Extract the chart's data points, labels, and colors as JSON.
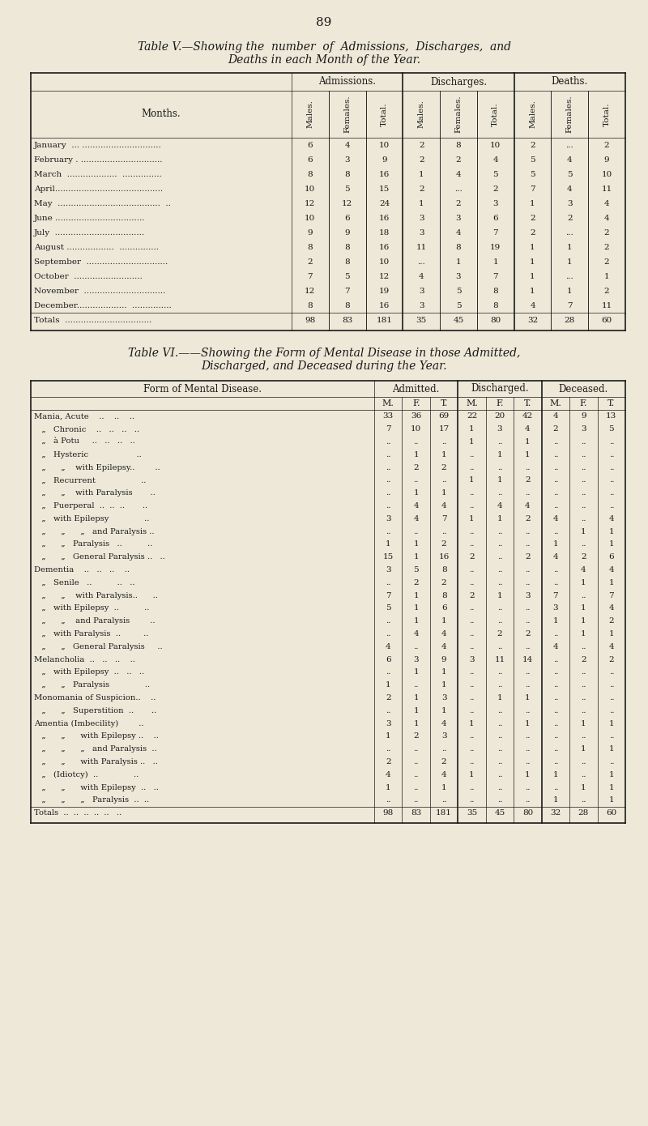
{
  "bg_color": "#ede8d8",
  "text_color": "#1a1a1a",
  "page_number": "89",
  "table5": {
    "title_line1": "Table V.—Showing the  number  of  Admissions,  Discharges,  and",
    "title_line2": "Deaths in each Month of the Year.",
    "col_groups": [
      "Admissions.",
      "Discharges.",
      "Deaths."
    ],
    "sub_cols": [
      "Males.",
      "Females.",
      "Total."
    ],
    "row_header": "Months.",
    "rows": [
      [
        "January  ... ..............................",
        "6",
        "4",
        "10",
        "2",
        "8",
        "10",
        "2",
        "...",
        "2"
      ],
      [
        "February . ...............................",
        "6",
        "3",
        "9",
        "2",
        "2",
        "4",
        "5",
        "4",
        "9"
      ],
      [
        "March  ...................  ...............",
        "8",
        "8",
        "16",
        "1",
        "4",
        "5",
        "5",
        "5",
        "10"
      ],
      [
        "April.........................................",
        "10",
        "5",
        "15",
        "2",
        "...",
        "2",
        "7",
        "4",
        "11"
      ],
      [
        "May  .......................................  ..",
        "12",
        "12",
        "24",
        "1",
        "2",
        "3",
        "1",
        "3",
        "4"
      ],
      [
        "June ..................................",
        "10",
        "6",
        "16",
        "3",
        "3",
        "6",
        "2",
        "2",
        "4"
      ],
      [
        "July  ..................................",
        "9",
        "9",
        "18",
        "3",
        "4",
        "7",
        "2",
        "...",
        "2"
      ],
      [
        "August ..................  ...............",
        "8",
        "8",
        "16",
        "11",
        "8",
        "19",
        "1",
        "1",
        "2"
      ],
      [
        "September  ...............................",
        "2",
        "8",
        "10",
        "...",
        "1",
        "1",
        "1",
        "1",
        "2"
      ],
      [
        "October  ..........................",
        "7",
        "5",
        "12",
        "4",
        "3",
        "7",
        "1",
        "...",
        "1"
      ],
      [
        "November  ...............................",
        "12",
        "7",
        "19",
        "3",
        "5",
        "8",
        "1",
        "1",
        "2"
      ],
      [
        "December...................  ...............",
        "8",
        "8",
        "16",
        "3",
        "5",
        "8",
        "4",
        "7",
        "11"
      ],
      [
        "Totals  .................................",
        "98",
        "83",
        "181",
        "35",
        "45",
        "80",
        "32",
        "28",
        "60"
      ]
    ]
  },
  "table6": {
    "title_line1": "Table VI.——Showing the Form of Mental Disease in those Admitted,",
    "title_line2": "Discharged, and Deceased during the Year.",
    "col_groups": [
      "Admitted.",
      "Discharged.",
      "Deceased."
    ],
    "sub_cols": [
      "M.",
      "F.",
      "T."
    ],
    "row_header": "Form of Mental Disease.",
    "rows": [
      [
        "Mania, Acute    ..    ..    ..",
        "33",
        "36",
        "69",
        "22",
        "20",
        "42",
        "4",
        "9",
        "13"
      ],
      [
        "   „   Chronic    ..   ..   ..   ..",
        "7",
        "10",
        "17",
        "1",
        "3",
        "4",
        "2",
        "3",
        "5"
      ],
      [
        "   „   à Potu     ..   ..   ..   ..",
        "..",
        "..",
        "..",
        "1",
        "..",
        "1",
        "..",
        "..",
        ".."
      ],
      [
        "   „   Hysteric                   ..",
        "..",
        "1",
        "1",
        "..",
        "1",
        "1",
        "..",
        "..",
        ".."
      ],
      [
        "   „      „    with Epilepsy..        ..",
        "..",
        "2",
        "2",
        "..",
        "..",
        "..",
        "..",
        "..",
        ".."
      ],
      [
        "   „   Recurrent                  ..",
        "..",
        "..",
        "..",
        "1",
        "1",
        "2",
        "..",
        "..",
        ".."
      ],
      [
        "   „      „    with Paralysis       ..",
        "..",
        "1",
        "1",
        "..",
        "..",
        "..",
        "..",
        "..",
        ".."
      ],
      [
        "   „   Puerperal  ..  ..  ..       ..",
        "..",
        "4",
        "4",
        "..",
        "4",
        "4",
        "..",
        "..",
        ".."
      ],
      [
        "   „   with Epilepsy              ..",
        "3",
        "4",
        "7",
        "1",
        "1",
        "2",
        "4",
        "..",
        "4"
      ],
      [
        "   „      „      „   and Paralysis ..",
        "..",
        "..",
        "..",
        "..",
        "..",
        "..",
        "..",
        "1",
        "1"
      ],
      [
        "   „      „   Paralysis   ..          ..",
        "1",
        "1",
        "2",
        "..",
        "..",
        "..",
        "1",
        "..",
        "1"
      ],
      [
        "   „      „   General Paralysis ..   ..",
        "15",
        "1",
        "16",
        "2",
        "..",
        "2",
        "4",
        "2",
        "6"
      ],
      [
        "Dementia    ..   ..   ..    ..",
        "3",
        "5",
        "8",
        "..",
        "..",
        "..",
        "..",
        "4",
        "4"
      ],
      [
        "   „   Senile   ..          ..   ..",
        "..",
        "2",
        "2",
        "..",
        "..",
        "..",
        "..",
        "1",
        "1"
      ],
      [
        "   „      „    with Paralysis..      ..",
        "7",
        "1",
        "8",
        "2",
        "1",
        "3",
        "7",
        "..",
        "7"
      ],
      [
        "   „   with Epilepsy  ..          ..",
        "5",
        "1",
        "6",
        "..",
        "..",
        "..",
        "3",
        "1",
        "4"
      ],
      [
        "   „      „    and Paralysis        ..",
        "..",
        "1",
        "1",
        "..",
        "..",
        "..",
        "1",
        "1",
        "2"
      ],
      [
        "   „   with Paralysis  ..         ..",
        "..",
        "4",
        "4",
        "..",
        "2",
        "2",
        "..",
        "1",
        "1"
      ],
      [
        "   „      „   General Paralysis     ..",
        "4",
        "..",
        "4",
        "..",
        "..",
        "..",
        "4",
        "..",
        "4"
      ],
      [
        "Melancholia  ..   ..   ..    ..",
        "6",
        "3",
        "9",
        "3",
        "11",
        "14",
        "..",
        "2",
        "2"
      ],
      [
        "   „   with Epilepsy  ..   ..   ..",
        "..",
        "1",
        "1",
        "..",
        "..",
        "..",
        "..",
        "..",
        ".."
      ],
      [
        "   „      „   Paralysis              ..",
        "1",
        "..",
        "1",
        "..",
        "..",
        "..",
        "..",
        "..",
        ".."
      ],
      [
        "Monomania of Suspicion..    ..",
        "2",
        "1",
        "3",
        "..",
        "1",
        "1",
        "..",
        "..",
        ".."
      ],
      [
        "   „      „   Superstition  ..       ..",
        "..",
        "1",
        "1",
        "..",
        "..",
        "..",
        "..",
        "..",
        ".."
      ],
      [
        "Amentia (Imbecility)        ..",
        "3",
        "1",
        "4",
        "1",
        "..",
        "1",
        "..",
        "1",
        "1"
      ],
      [
        "   „      „      with Epilepsy ..    ..",
        "1",
        "2",
        "3",
        "..",
        "..",
        "..",
        "..",
        "..",
        ".."
      ],
      [
        "   „      „      „   and Paralysis  ..",
        "..",
        "..",
        "..",
        "..",
        "..",
        "..",
        "..",
        "1",
        "1"
      ],
      [
        "   „      „      with Paralysis ..   ..",
        "2",
        "..",
        "2",
        "..",
        "..",
        "..",
        "..",
        "..",
        ".."
      ],
      [
        "   „   (Idiotcy)  ..              ..",
        "4",
        "..",
        "4",
        "1",
        "..",
        "1",
        "1",
        "..",
        "1"
      ],
      [
        "   „      „      with Epilepsy  ..   ..",
        "1",
        "..",
        "1",
        "..",
        "..",
        "..",
        "..",
        "1",
        "1"
      ],
      [
        "   „      „      „   Paralysis  ..  ..",
        "..",
        "..",
        "..",
        "..",
        "..",
        "..",
        "1",
        "..",
        "1"
      ],
      [
        "Totals  ..  ..  ..  ..  ..   ..",
        "98",
        "83",
        "181",
        "35",
        "45",
        "80",
        "32",
        "28",
        "60"
      ]
    ]
  }
}
